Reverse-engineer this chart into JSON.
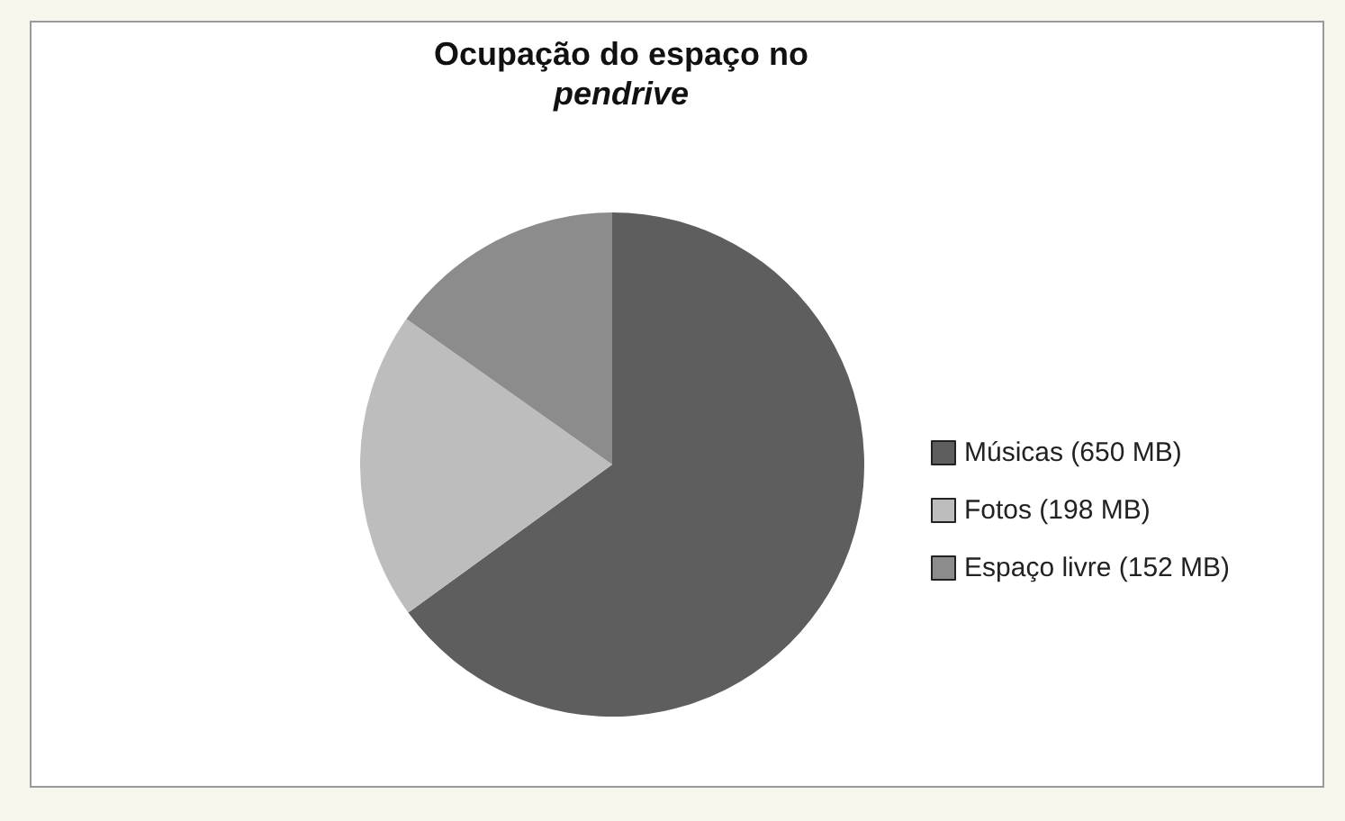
{
  "chart_data": {
    "type": "pie",
    "title": "Ocupação do espaço no pendrive",
    "categories": [
      "Músicas (650 MB)",
      "Fotos (198 MB)",
      "Espaço livre (152 MB)"
    ],
    "values": [
      650,
      198,
      152
    ],
    "colors": [
      "#5e5e5e",
      "#bdbdbd",
      "#8c8c8c"
    ],
    "legend": "right"
  }
}
